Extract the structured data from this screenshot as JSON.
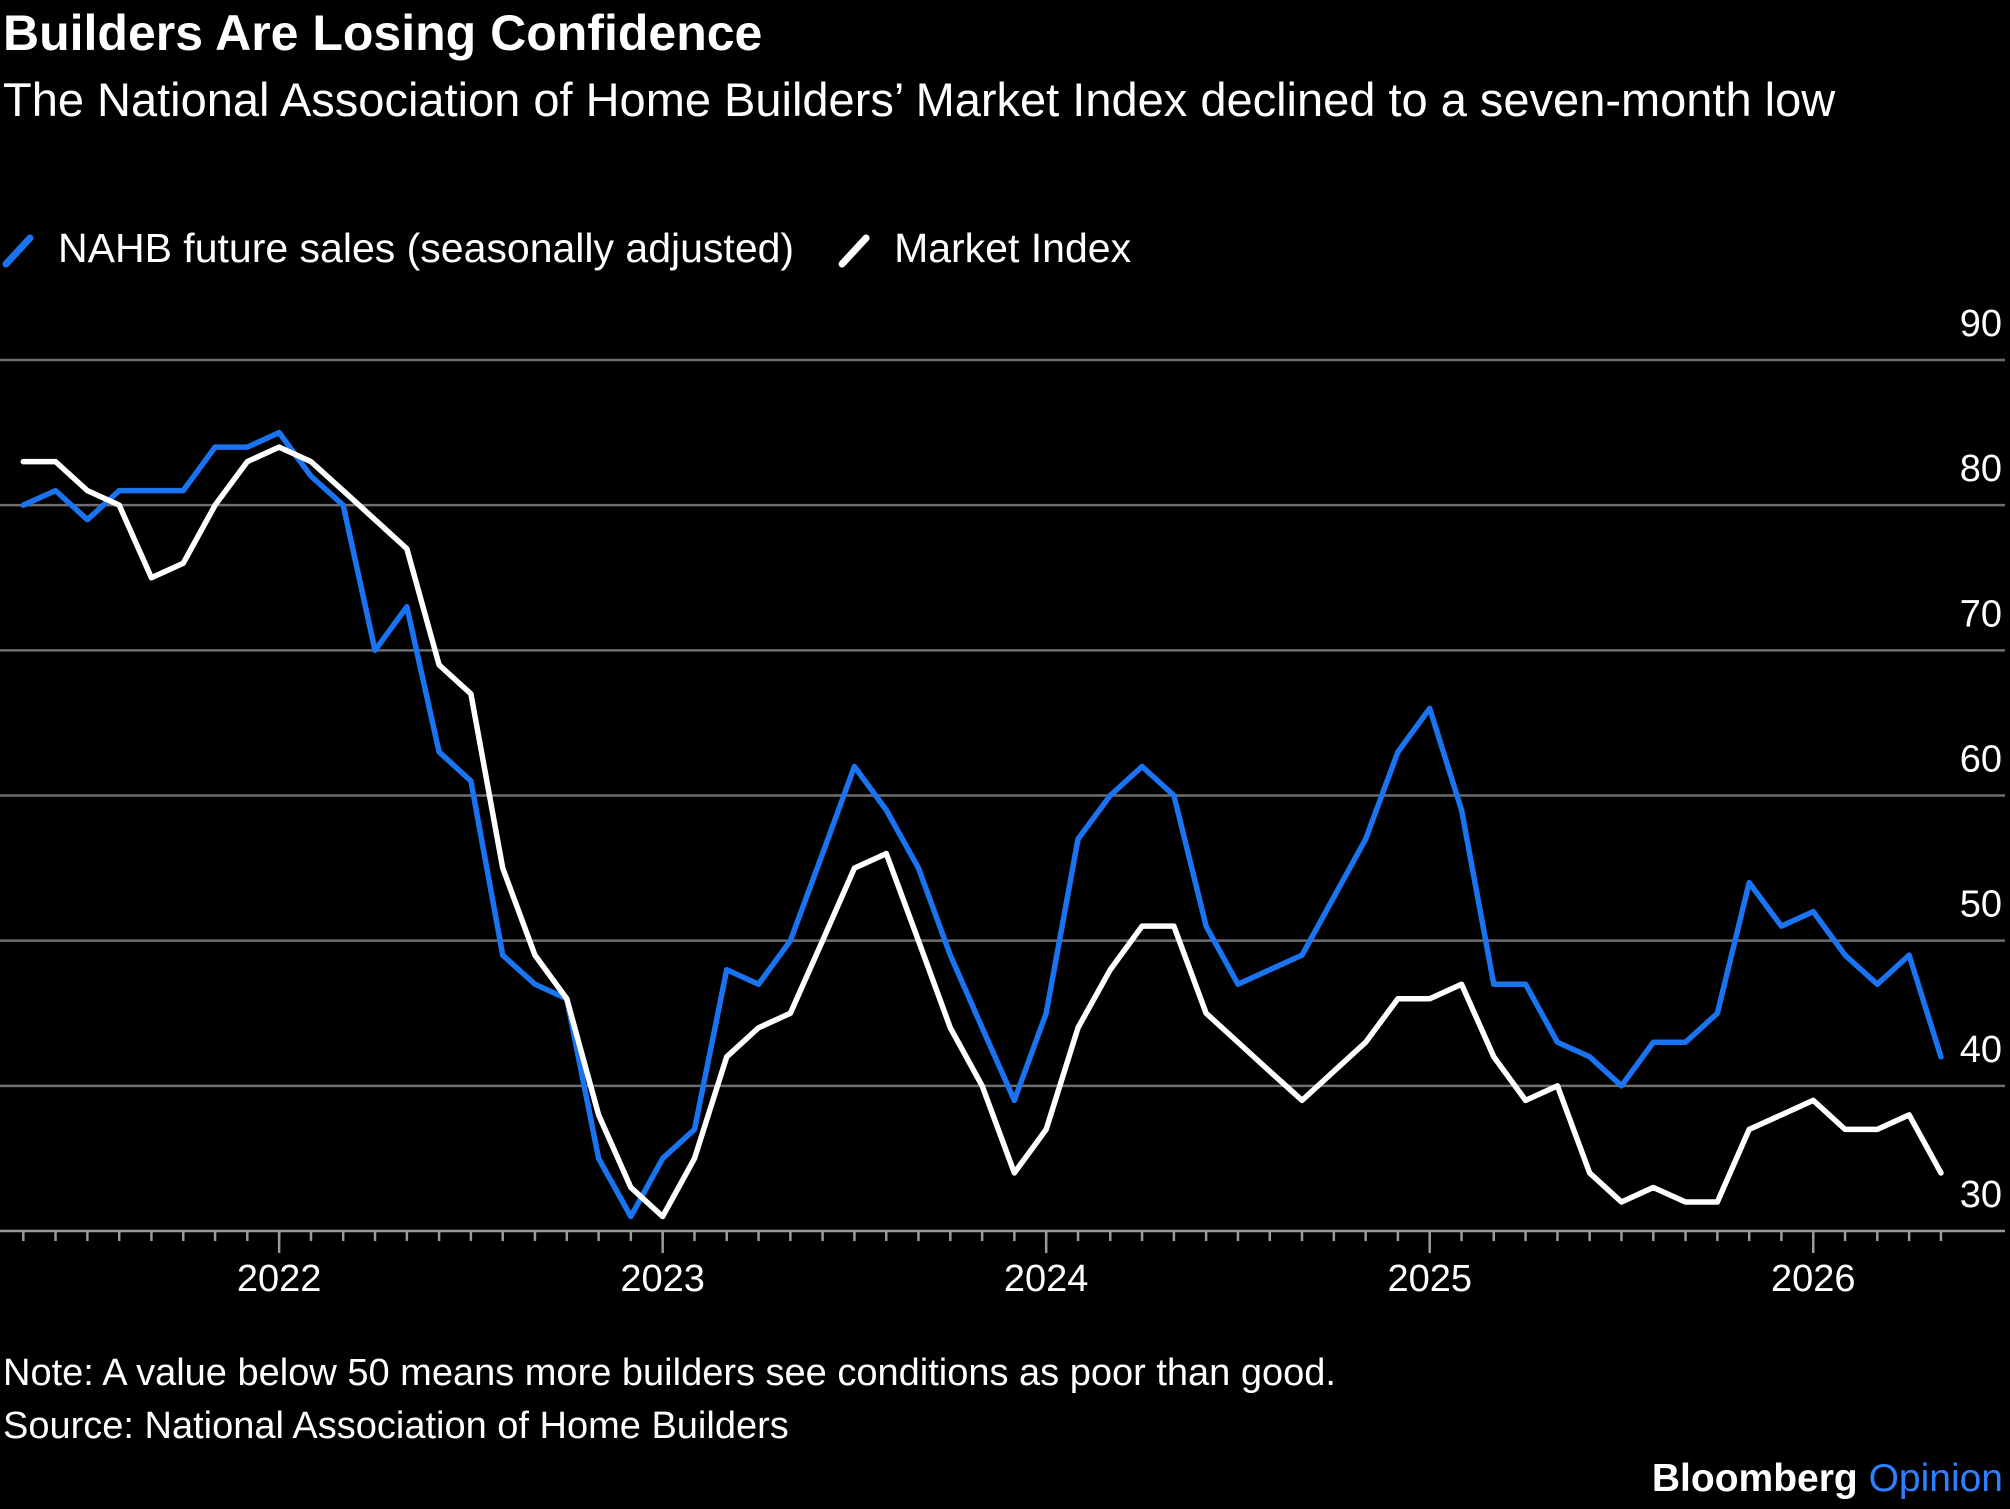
{
  "chart_data": {
    "type": "line",
    "title": "Builders Are Losing Confidence",
    "subtitle": "The National Association of Home Builders’ Market Index declined to a seven-month low",
    "note": "Note: A value below 50 means more builders see conditions as poor than good.",
    "source": "Source: National Association of Home Builders",
    "logo": {
      "text": "Bloomberg",
      "accent": "Opinion",
      "accent_color": "#2f80ff"
    },
    "x": [
      2021.333,
      2021.417,
      2021.5,
      2021.583,
      2021.667,
      2021.75,
      2021.833,
      2021.917,
      2022,
      2022.083,
      2022.167,
      2022.25,
      2022.333,
      2022.417,
      2022.5,
      2022.583,
      2022.667,
      2022.75,
      2022.833,
      2022.917,
      2023,
      2023.083,
      2023.167,
      2023.25,
      2023.333,
      2023.417,
      2023.5,
      2023.583,
      2023.667,
      2023.75,
      2023.833,
      2023.917,
      2024,
      2024.083,
      2024.167,
      2024.25,
      2024.333,
      2024.417,
      2024.5,
      2024.583,
      2024.667,
      2024.75,
      2024.833,
      2024.917,
      2025,
      2025.083,
      2025.167,
      2025.25,
      2025.333,
      2025.417,
      2025.5,
      2025.583,
      2025.667,
      2025.75,
      2025.833,
      2025.917,
      2026,
      2026.083,
      2026.167,
      2026.25,
      2026.333
    ],
    "series": [
      {
        "name": "NAHB future sales (seasonally adjusted)",
        "color": "#1a73f0",
        "values": [
          80,
          81,
          79,
          81,
          81,
          81,
          84,
          84,
          85,
          82,
          80,
          70,
          73,
          63,
          61,
          49,
          47,
          46,
          35,
          31,
          35,
          37,
          48,
          47,
          50,
          56,
          62,
          59,
          55,
          49,
          44,
          39,
          45,
          57,
          60,
          62,
          60,
          51,
          47,
          48,
          49,
          53,
          57,
          63,
          66,
          59,
          47,
          47,
          43,
          42,
          40,
          43,
          43,
          45,
          54,
          51,
          52,
          49,
          47,
          49,
          42
        ]
      },
      {
        "name": "Market Index",
        "color": "#ffffff",
        "values": [
          83,
          83,
          81,
          80,
          75,
          76,
          80,
          83,
          84,
          83,
          81,
          79,
          77,
          69,
          67,
          55,
          49,
          46,
          38,
          33,
          31,
          35,
          42,
          44,
          45,
          50,
          55,
          56,
          50,
          44,
          40,
          34,
          37,
          44,
          48,
          51,
          51,
          45,
          43,
          41,
          39,
          41,
          43,
          46,
          46,
          47,
          42,
          39,
          40,
          34,
          32,
          33,
          32,
          32,
          37,
          38,
          39,
          37,
          37,
          38,
          34
        ]
      }
    ],
    "xlim": [
      2021.28,
      2026.5
    ],
    "xticks": [
      2022,
      2023,
      2024,
      2025,
      2026
    ],
    "ylim": [
      30,
      90
    ],
    "yticks": [
      30,
      40,
      50,
      60,
      70,
      80,
      90
    ],
    "grid": true,
    "background": "#000000"
  }
}
